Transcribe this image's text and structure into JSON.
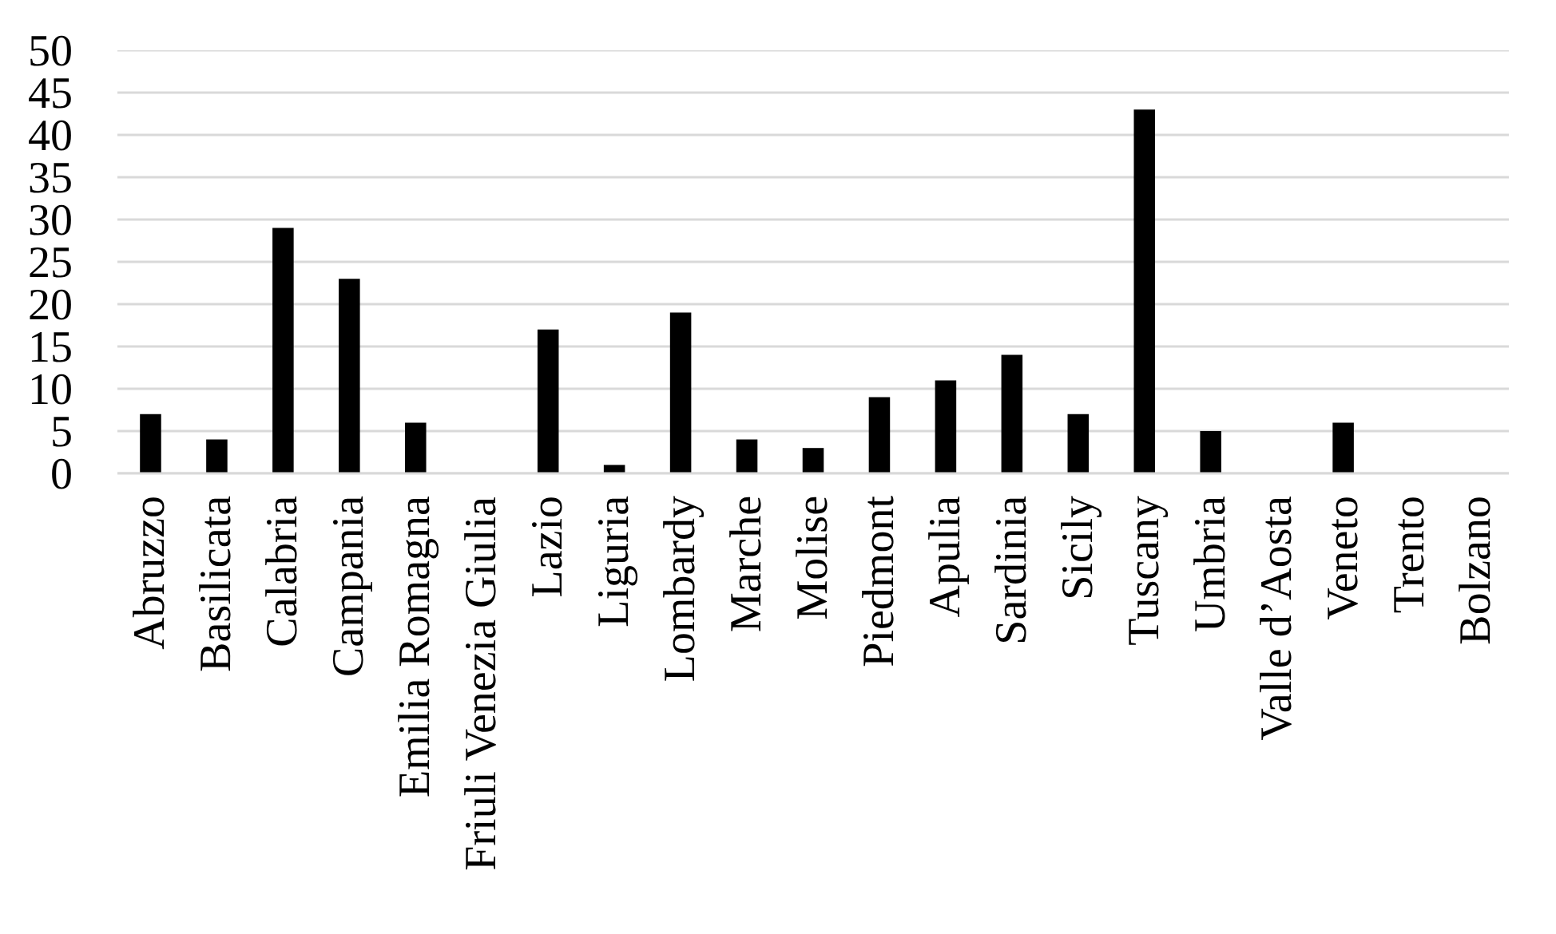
{
  "chart_data": {
    "type": "bar",
    "categories": [
      "Abruzzo",
      "Basilicata",
      "Calabria",
      "Campania",
      "Emilia Romagna",
      "Friuli Venezia Giulia",
      "Lazio",
      "Liguria",
      "Lombardy",
      "Marche",
      "Molise",
      "Piedmont",
      "Apulia",
      "Sardinia",
      "Sicily",
      "Tuscany",
      "Umbria",
      "Valle d’Aosta",
      "Veneto",
      "Trento",
      "Bolzano"
    ],
    "values": [
      7,
      4,
      29,
      23,
      6,
      0,
      17,
      1,
      19,
      4,
      3,
      9,
      11,
      14,
      7,
      43,
      5,
      0,
      6,
      0,
      0
    ],
    "color": "#000000",
    "ylim": [
      0,
      50
    ],
    "yticks": [
      0,
      5,
      10,
      15,
      20,
      25,
      30,
      35,
      40,
      45,
      50
    ],
    "grid": "y"
  }
}
